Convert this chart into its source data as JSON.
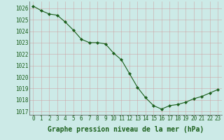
{
  "x": [
    0,
    1,
    2,
    3,
    4,
    5,
    6,
    7,
    8,
    9,
    10,
    11,
    12,
    13,
    14,
    15,
    16,
    17,
    18,
    19,
    20,
    21,
    22,
    23
  ],
  "y": [
    1026.2,
    1025.8,
    1025.5,
    1025.4,
    1024.8,
    1024.1,
    1023.3,
    1023.0,
    1023.0,
    1022.9,
    1022.1,
    1021.5,
    1020.3,
    1019.1,
    1018.2,
    1017.5,
    1017.2,
    1017.5,
    1017.6,
    1017.8,
    1018.1,
    1018.3,
    1018.6,
    1018.9
  ],
  "line_color": "#1a5e1a",
  "marker": "D",
  "marker_size": 2.2,
  "bg_color": "#cceae7",
  "grid_color": "#b0b0b0",
  "xlabel": "Graphe pression niveau de la mer (hPa)",
  "xlabel_color": "#1a5e1a",
  "tick_color": "#1a5e1a",
  "ylim": [
    1016.7,
    1026.6
  ],
  "xlim": [
    -0.5,
    23.5
  ],
  "yticks": [
    1017,
    1018,
    1019,
    1020,
    1021,
    1022,
    1023,
    1024,
    1025,
    1026
  ],
  "xticks": [
    0,
    1,
    2,
    3,
    4,
    5,
    6,
    7,
    8,
    9,
    10,
    11,
    12,
    13,
    14,
    15,
    16,
    17,
    18,
    19,
    20,
    21,
    22,
    23
  ],
  "tick_fontsize": 5.5,
  "xlabel_fontsize": 7.0
}
